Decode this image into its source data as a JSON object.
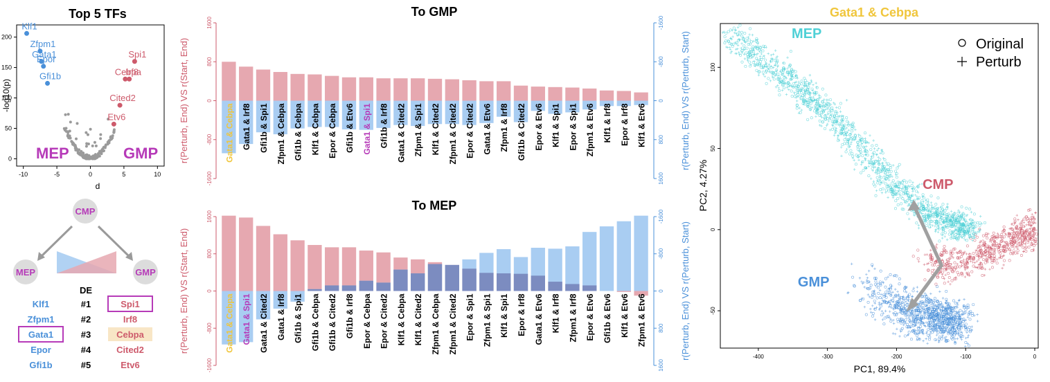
{
  "colors": {
    "red": "#cd5a6b",
    "red_light": "#e6a8b0",
    "blue": "#4a90d9",
    "blue_light": "#a9cdf2",
    "overlap": "#7c8cc0",
    "magenta": "#b63ab8",
    "yellow": "#f0c63c",
    "cyan": "#4fd0d6",
    "gray": "#9a9a9a",
    "node_gray": "#dcdcdc",
    "cebpa_bg": "#f8e6c6"
  },
  "volcano": {
    "title": "Top 5 TFs",
    "xlabel": "d",
    "ylabel": "-log10(p)",
    "xticks": [
      "-10",
      "-5",
      "0",
      "5",
      "10"
    ],
    "yticks": [
      "0",
      "50",
      "100",
      "150",
      "200"
    ],
    "left_label": "MEP",
    "right_label": "GMP",
    "left_points": [
      {
        "name": "Klf1",
        "d": -9.5,
        "p": 206
      },
      {
        "name": "Zfpm1",
        "d": -7.5,
        "p": 177
      },
      {
        "name": "Gata1",
        "d": -7.3,
        "p": 160
      },
      {
        "name": "Epor",
        "d": -7.0,
        "p": 152
      },
      {
        "name": "Gfi1b",
        "d": -6.4,
        "p": 124
      }
    ],
    "right_points": [
      {
        "name": "Spi1",
        "d": 6.6,
        "p": 160
      },
      {
        "name": "Cebpa",
        "d": 5.2,
        "p": 131
      },
      {
        "name": "Irf8",
        "d": 5.8,
        "p": 131
      },
      {
        "name": "Cited2",
        "d": 4.4,
        "p": 88
      },
      {
        "name": "Etv6",
        "d": 3.5,
        "p": 57
      }
    ]
  },
  "lineage": {
    "cmp": "CMP",
    "mep": "MEP",
    "gmp": "GMP",
    "de_header": "DE",
    "ranks": [
      "#1",
      "#2",
      "#3",
      "#4",
      "#5"
    ],
    "left_genes": [
      "Klf1",
      "Zfpm1",
      "Gata1",
      "Epor",
      "Gfi1b"
    ],
    "right_genes": [
      "Spi1",
      "Irf8",
      "Cebpa",
      "Cited2",
      "Etv6"
    ]
  },
  "chart_data": [
    {
      "type": "bar",
      "title": "To GMP",
      "ylabel_left": "r(Perturb, End) VS r(Start, End)",
      "ylabel_right": "r(Perturb, End) VS r(Perturb, Start)",
      "yticks_left": [
        "1600",
        "800",
        "0",
        "-800",
        "-1600"
      ],
      "yticks_right": [
        "-1600",
        "-800",
        "0",
        "800",
        "1600"
      ],
      "ylim": [
        -1600,
        1600
      ],
      "categories": [
        "Gata1 & Cebpa",
        "Gata1 & Irf8",
        "Gfi1b & Spi1",
        "Zfpm1 & Cebpa",
        "Gfi1b & Cebpa",
        "Klf1 & Cebpa",
        "Epor & Cebpa",
        "Gfi1b & Etv6",
        "Gata1 & Spi1",
        "Gfi1b & Irf8",
        "Gata1 & Cited2",
        "Zfpm1 & Spi1",
        "Klf1 & Cited2",
        "Zfpm1 & Cited2",
        "Epor & Cited2",
        "Gata1 & Etv6",
        "Zfpm1 & Irf8",
        "Gfi1b & Cited2",
        "Epor & Etv6",
        "Klf1 & Spi1",
        "Epor & Spi1",
        "Zfpm1 & Etv6",
        "Klf1 & Irf8",
        "Epor & Irf8",
        "Klf1 & Etv6"
      ],
      "highlight": {
        "Gata1 & Cebpa": "yellow",
        "Gata1 & Spi1": "magenta"
      },
      "series": [
        {
          "name": "r(Perturb, End) VS r(Start, End)",
          "values": [
            800,
            700,
            640,
            590,
            550,
            540,
            510,
            480,
            480,
            460,
            460,
            460,
            450,
            440,
            420,
            400,
            400,
            310,
            290,
            280,
            270,
            250,
            210,
            200,
            170
          ]
        },
        {
          "name": "r(Perturb, End) VS r(Perturb, Start)",
          "values": [
            -1080,
            -890,
            -650,
            -690,
            -570,
            -540,
            -540,
            -590,
            -600,
            -560,
            -500,
            -520,
            -480,
            -480,
            -500,
            -460,
            -330,
            -440,
            -210,
            -270,
            -240,
            -180,
            -110,
            -110,
            -90
          ]
        }
      ]
    },
    {
      "type": "bar",
      "title": "To MEP",
      "ylabel_left": "r(Perturb, End) VS r(Start, End)",
      "ylabel_right": "r(Perturb, End) VS r(Perturb, Start)",
      "yticks_left": [
        "1600",
        "800",
        "0",
        "-800",
        "-1600"
      ],
      "yticks_right": [
        "-1600",
        "-800",
        "0",
        "800",
        "1600"
      ],
      "ylim": [
        -1600,
        1600
      ],
      "categories": [
        "Gata1 & Cebpa",
        "Gata1 & Spi1",
        "Gata1 & Cited2",
        "Gata1 & Irf8",
        "Gfi1b & Spi1",
        "Gfi1b & Cebpa",
        "Gfi1b & Cited2",
        "Gfi1b & Irf8",
        "Epor & Cebpa",
        "Epor & Cited2",
        "Klf1 & Cebpa",
        "Klf1 & Cited2",
        "Zfpm1 & Cebpa",
        "Zfpm1 & Cited2",
        "Epor & Spi1",
        "Zfpm1 & Spi1",
        "Klf1 & Spi1",
        "Epor & Irf8",
        "Gata1 & Etv6",
        "Klf1 & Irf8",
        "Zfpm1 & Irf8",
        "Epor & Etv6",
        "Gfi1b & Etv6",
        "Klf1 & Etv6",
        "Zfpm1 & Etv6"
      ],
      "highlight": {
        "Gata1 & Cebpa": "yellow",
        "Gata1 & Spi1": "magenta"
      },
      "series": [
        {
          "name": "r(Perturb, End) VS r(Start, End)",
          "values": [
            1620,
            1580,
            1400,
            1220,
            1090,
            990,
            940,
            940,
            870,
            830,
            720,
            680,
            620,
            560,
            480,
            390,
            380,
            370,
            330,
            200,
            150,
            120,
            0,
            -20,
            -100
          ]
        },
        {
          "name": "r(Perturb, End) VS r(Perturb, Start)",
          "values": [
            -1150,
            -1100,
            -610,
            -380,
            -230,
            40,
            120,
            120,
            220,
            180,
            460,
            380,
            580,
            560,
            680,
            820,
            900,
            730,
            930,
            910,
            960,
            1270,
            1390,
            1500,
            1620
          ]
        }
      ]
    },
    {
      "type": "scatter",
      "title": "Gata1 & Cebpa",
      "xlabel": "PC1, 89.4%",
      "ylabel": "PC2, 4.27%",
      "xticks": [
        "-400",
        "-300",
        "-200",
        "-100",
        "0"
      ],
      "yticks": [
        "-50",
        "0",
        "50",
        "100"
      ],
      "xlim": [
        -455,
        5
      ],
      "ylim": [
        -73,
        127
      ],
      "legend": {
        "placement": "top-right",
        "entries": [
          "Original",
          "Perturb"
        ]
      },
      "clusters": [
        {
          "name": "MEP",
          "color": "cyan",
          "count": 1500,
          "path": [
            [
              -440,
              120
            ],
            [
              -380,
              100
            ],
            [
              -320,
              80
            ],
            [
              -260,
              55
            ],
            [
              -210,
              30
            ],
            [
              -160,
              12
            ],
            [
              -120,
              4
            ],
            [
              -90,
              0
            ]
          ]
        },
        {
          "name": "CMP",
          "color": "red",
          "count": 700,
          "path": [
            [
              -150,
              -20
            ],
            [
              -110,
              -22
            ],
            [
              -70,
              -14
            ],
            [
              -40,
              -8
            ],
            [
              -10,
              -2
            ],
            [
              0,
              0
            ]
          ]
        },
        {
          "name": "GMP",
          "color": "blue",
          "count": 1000,
          "path": [
            [
              -260,
              -30
            ],
            [
              -220,
              -42
            ],
            [
              -180,
              -52
            ],
            [
              -140,
              -55
            ],
            [
              -110,
              -58
            ]
          ]
        }
      ],
      "arrow_from": [
        -135,
        -22
      ],
      "arrow_mid": [
        -175,
        15
      ],
      "arrow_to": [
        -180,
        -48
      ]
    }
  ]
}
